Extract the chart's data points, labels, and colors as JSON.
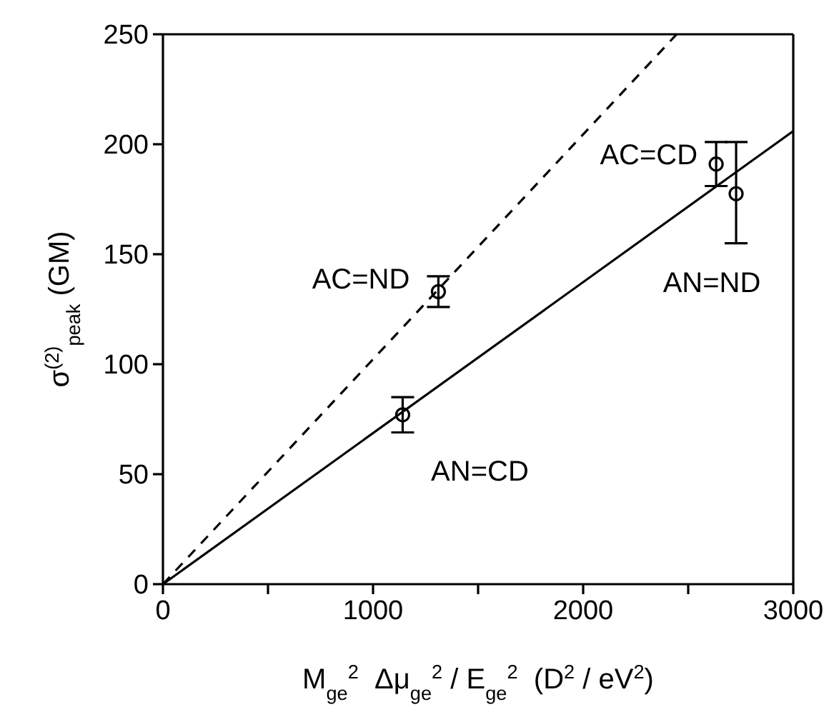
{
  "chart_data": {
    "type": "scatter",
    "xlabel": "M$_{ge}$$^{2}$  Δμ$_{ge}$$^{2}$ / E$_{ge}$$^{2}$  (D$^{2}$ / eV$^{2}$)",
    "ylabel": "σ$^{(2)}$$_{peak}$ (GM)",
    "xlim": [
      0,
      3000
    ],
    "xticks": [
      0,
      {
        "value": 500,
        "label": null
      },
      1000,
      {
        "value": 1500,
        "label": null
      },
      2000,
      {
        "value": 2500,
        "label": null
      },
      3000
    ],
    "ylim": [
      0,
      250
    ],
    "yticks": [
      0,
      50,
      100,
      150,
      200,
      250
    ],
    "grid": false,
    "legend": false,
    "series": [
      {
        "color": "#000000",
        "marker": "circle",
        "x": [
          1141,
          1311,
          2633,
          2728
        ],
        "values": [
          77,
          133,
          191,
          177.5
        ],
        "errors": [
          8,
          7,
          10,
          [
            155,
            201
          ]
        ]
      },
      {
        "type": "line",
        "color": "#000000",
        "line_style": "solid",
        "marker": "none",
        "x": [
          0,
          3000
        ],
        "values": [
          0,
          206
        ]
      },
      {
        "type": "line",
        "color": "#000000",
        "line_style": "dashed",
        "marker": "none",
        "x": [
          0,
          2445
        ],
        "values": [
          0,
          250
        ]
      }
    ],
    "annotations": [
      {
        "text": "AN=CD",
        "x": 1141,
        "y": 77
      },
      {
        "text": "AC=ND",
        "x": 1311,
        "y": 133
      },
      {
        "text": "AC=CD",
        "x": 2633,
        "y": 191
      },
      {
        "text": "AN=ND",
        "x": 2728,
        "y": 177.5
      }
    ]
  }
}
